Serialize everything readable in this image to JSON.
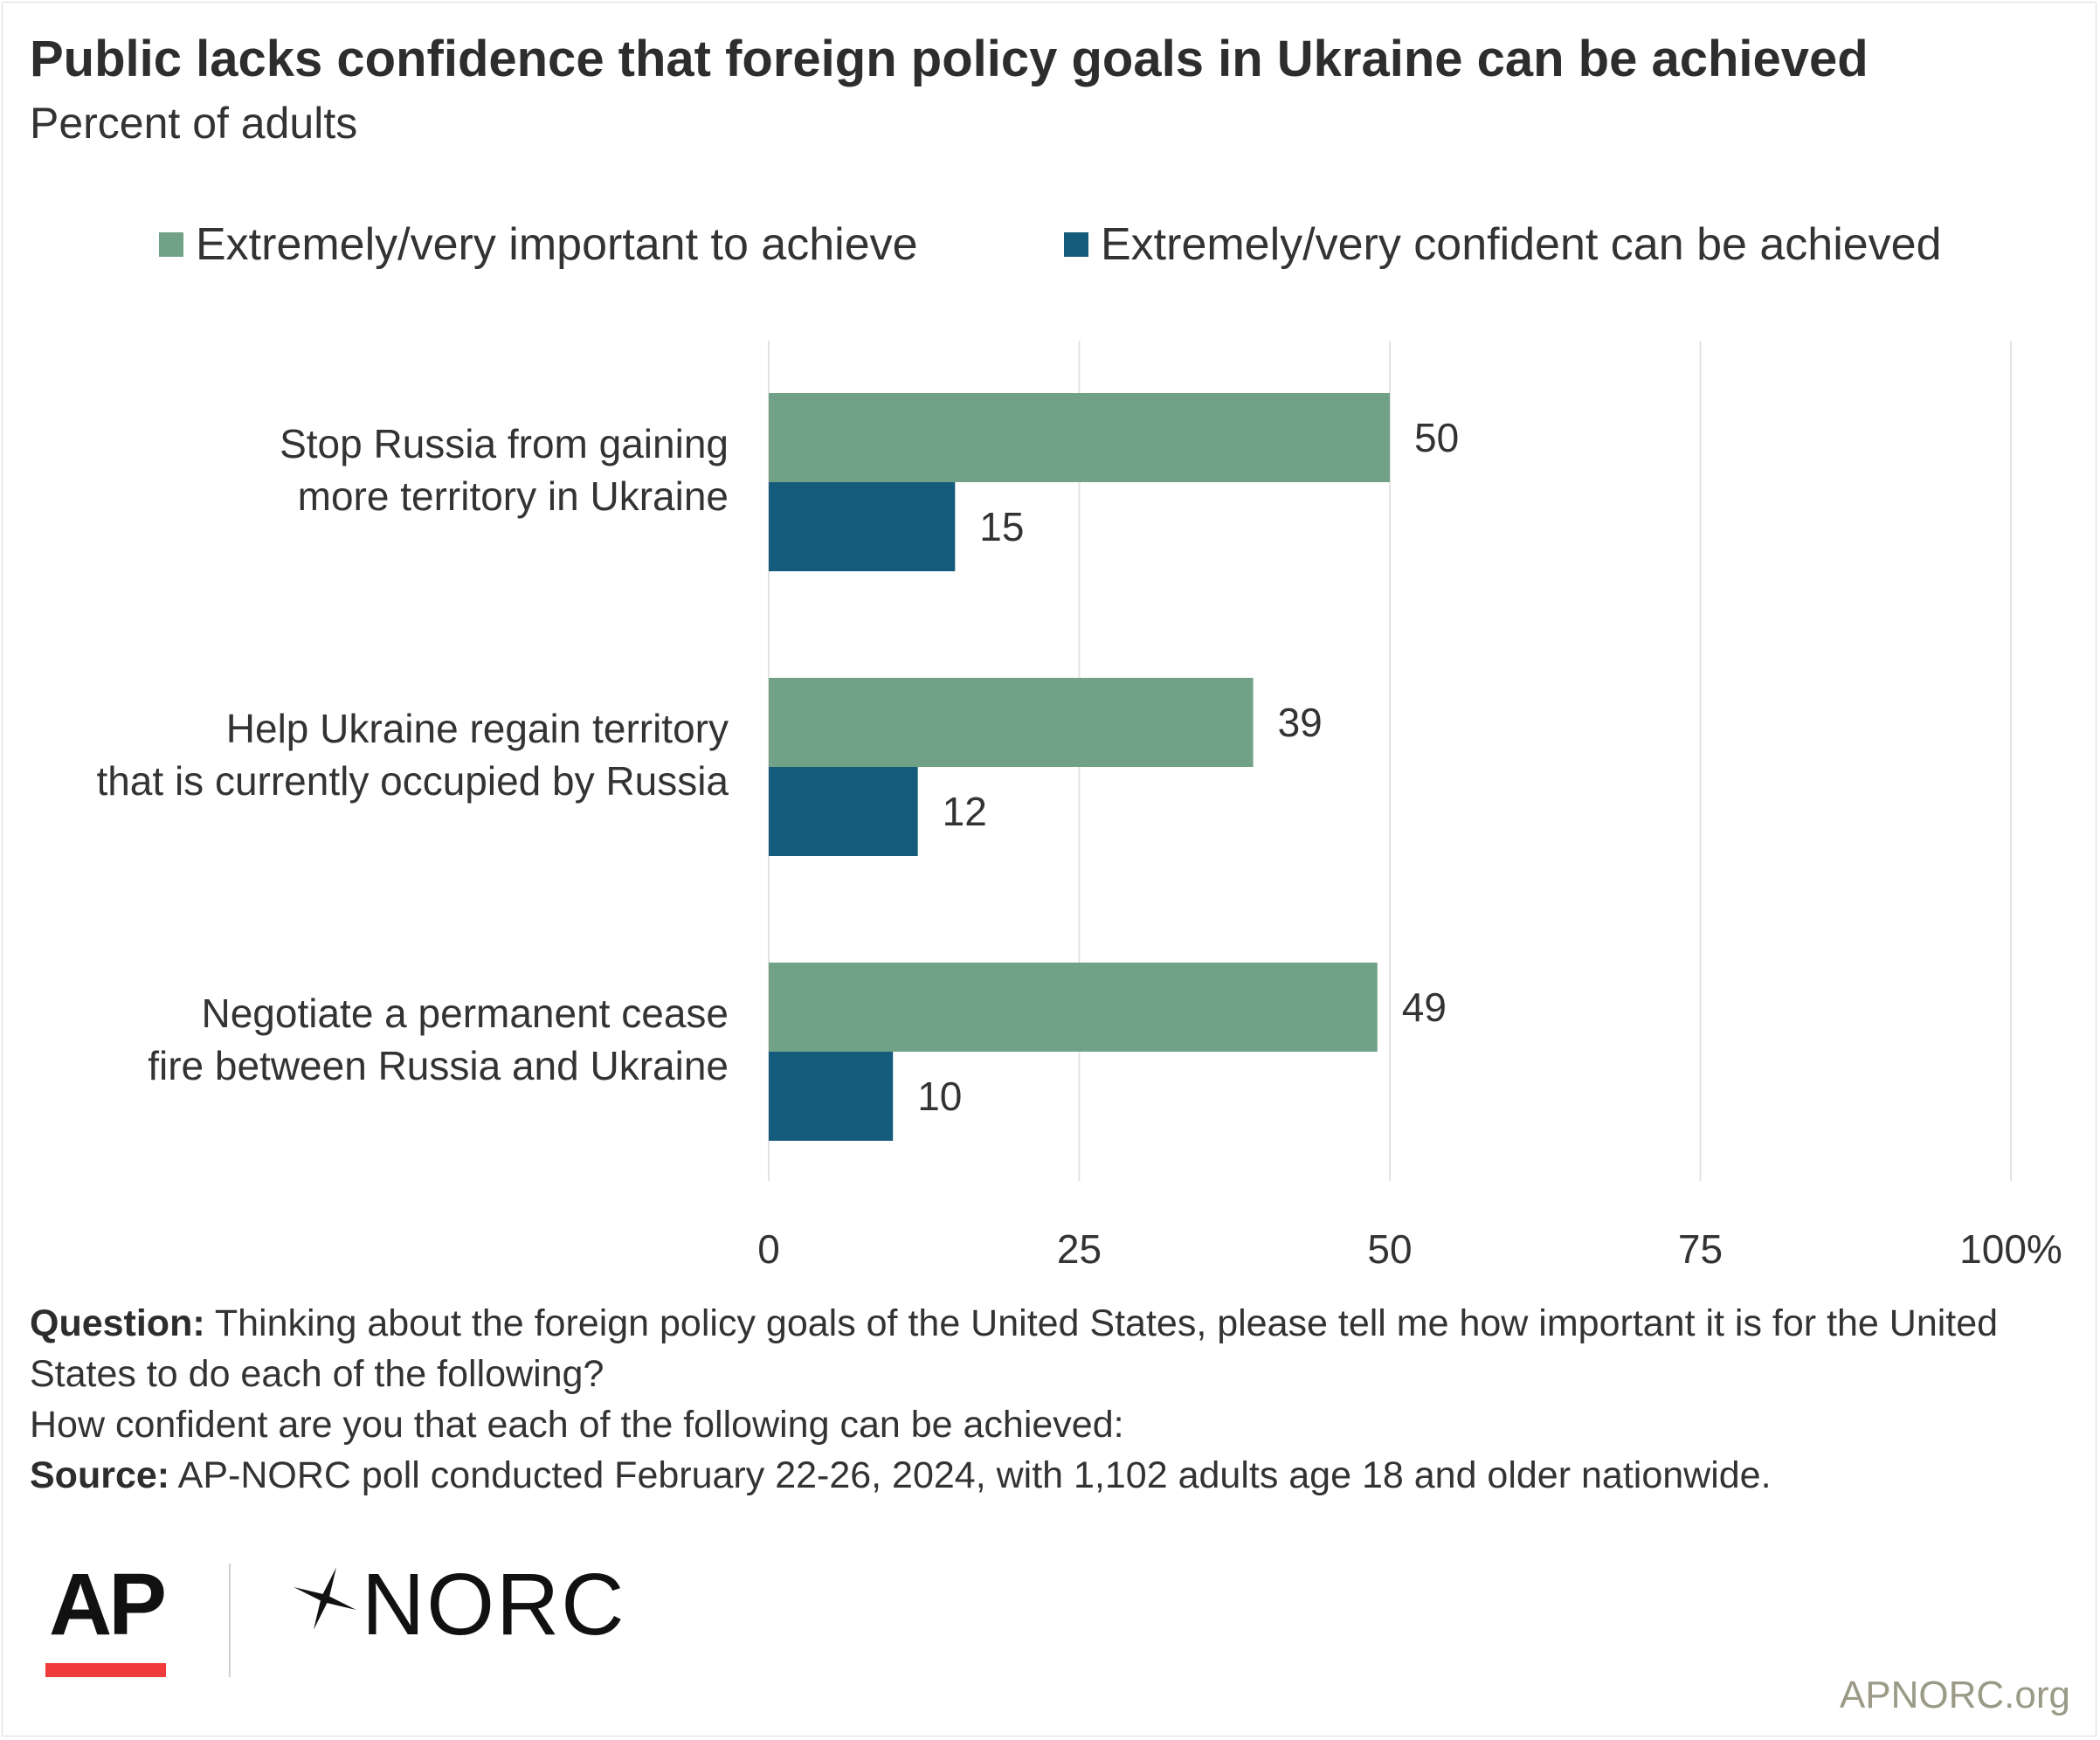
{
  "title": "Public lacks confidence that foreign policy goals in Ukraine can be achieved",
  "subtitle": "Percent of adults",
  "legend": [
    {
      "label": "Extremely/very important to achieve",
      "color": "#71a287"
    },
    {
      "label": "Extremely/very confident can be achieved",
      "color": "#155b7b"
    }
  ],
  "chart_data": {
    "type": "bar",
    "orientation": "horizontal",
    "categories": [
      [
        "Stop Russia from gaining",
        "more territory in Ukraine"
      ],
      [
        "Help Ukraine regain territory",
        "that is currently occupied by Russia"
      ],
      [
        "Negotiate a permanent cease",
        "fire between Russia and Ukraine"
      ]
    ],
    "series": [
      {
        "name": "Extremely/very important to achieve",
        "color": "#71a287",
        "values": [
          50,
          39,
          49
        ]
      },
      {
        "name": "Extremely/very confident can be achieved",
        "color": "#155b7b",
        "values": [
          15,
          12,
          10
        ]
      }
    ],
    "xlim": [
      0,
      100
    ],
    "xticks": [
      "0",
      "25",
      "50",
      "75",
      "100%"
    ],
    "grid": true,
    "legend_position": "top"
  },
  "footnote": {
    "question_label": "Question:",
    "question_text": " Thinking about the foreign policy goals of the United States, please tell me how important it is for the United States to do each of the following?",
    "question_text2": "How confident are you that each of the following can be achieved:",
    "source_label": "Source:",
    "source_text": " AP-NORC poll conducted February 22-26, 2024, with 1,102 adults age 18 and older nationwide."
  },
  "logos": {
    "ap": "AP",
    "norc": "NORC"
  },
  "site": "APNORC.org",
  "colors": {
    "gridline": "#e3e3e3",
    "ap_red": "#ef3b3b"
  }
}
